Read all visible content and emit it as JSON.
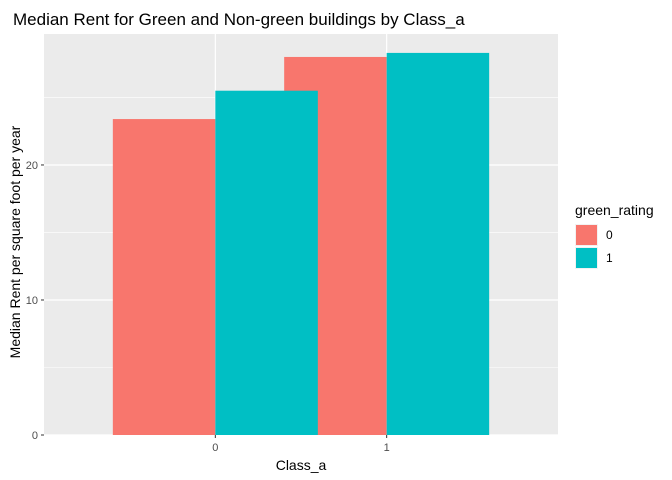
{
  "chart_data": {
    "type": "bar",
    "title": "Median Rent for Green and Non-green buildings by Class_a",
    "xlabel": "Class_a",
    "ylabel": "Median Rent per square foot per year",
    "categories": [
      "0",
      "1"
    ],
    "series": [
      {
        "name": "0",
        "values": [
          23.4,
          28.0
        ],
        "color": "#F8766D"
      },
      {
        "name": "1",
        "values": [
          25.5,
          28.3
        ],
        "color": "#00BFC4"
      }
    ],
    "ylim": [
      0,
      29.7
    ],
    "yticks": [
      0,
      10,
      20
    ],
    "grid": true,
    "legend": {
      "title": "green_rating",
      "position": "right"
    },
    "panel_background": "#EBEBEB",
    "grid_color": "#FFFFFF"
  }
}
